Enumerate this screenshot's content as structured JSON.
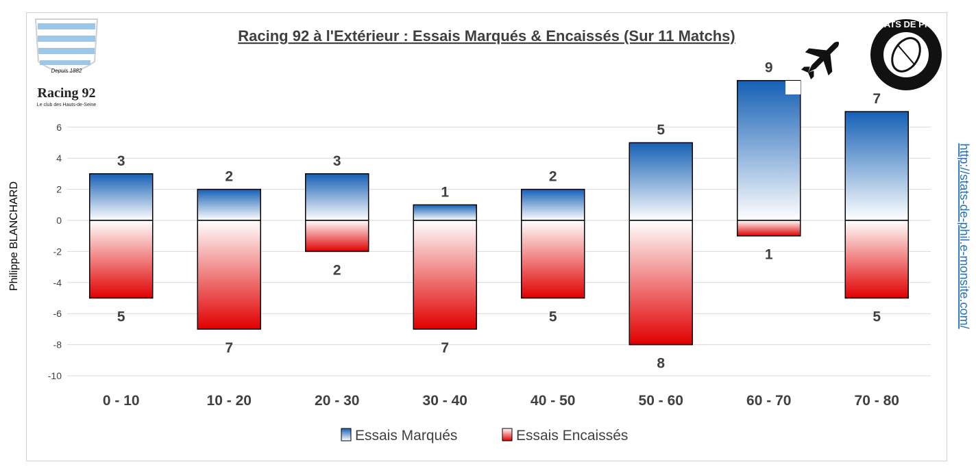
{
  "chart_data": {
    "type": "bar",
    "title": "Racing 92 à l'Extérieur : Essais Marqués & Encaissés (Sur 11 Matchs)",
    "categories": [
      "0 - 10",
      "10 - 20",
      "20 - 30",
      "30 - 40",
      "40 - 50",
      "50 - 60",
      "60 - 70",
      "70 - 80"
    ],
    "series": [
      {
        "name": "Essais Marqués",
        "values": [
          3,
          2,
          3,
          1,
          2,
          5,
          9,
          7
        ],
        "labels": [
          "3",
          "2",
          "3",
          "1",
          "2",
          "5",
          "9",
          "7"
        ],
        "color_top": "#1a63b8",
        "color_bottom": "#ffffff"
      },
      {
        "name": "Essais Encaissés",
        "values": [
          -5,
          -7,
          -2,
          -7,
          -5,
          -8,
          -1,
          -5
        ],
        "labels": [
          "5",
          "7",
          "2",
          "7",
          "5",
          "8",
          "1",
          "5"
        ],
        "color_top": "#ffffff",
        "color_bottom": "#e00000"
      }
    ],
    "ylim": [
      -10,
      10
    ],
    "yticks": [
      "-10",
      "-8",
      "-6",
      "-4",
      "-2",
      "0",
      "2",
      "4",
      "6"
    ],
    "ytick_values": [
      -10,
      -8,
      -6,
      -4,
      -2,
      0,
      2,
      4,
      6
    ],
    "grid": true,
    "legend": "bottom-center"
  },
  "side": {
    "author": "Philippe BLANCHARD",
    "url": "http://stats-de-phil.e-monsite.com/"
  },
  "logos": {
    "club_name": "Racing 92",
    "club_tagline": "Le club des Hauts-de-Seine",
    "club_since": "Depuis 1882",
    "stats_logo": "STATS DE PHIL"
  },
  "icons": {
    "plane": "airplane-icon"
  }
}
